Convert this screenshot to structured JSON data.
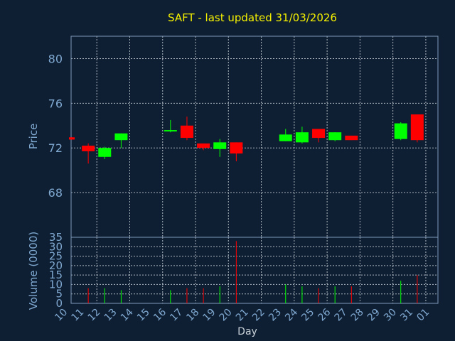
{
  "chart_data": {
    "type": "candlestick",
    "title": "SAFT - last updated 31/03/2026",
    "xlabel": "Day",
    "price_ylabel": "Price",
    "volume_ylabel": "Volume (0000)",
    "x_ticks": [
      "10",
      "11",
      "12",
      "13",
      "14",
      "15",
      "16",
      "17",
      "18",
      "19",
      "20",
      "21",
      "22",
      "23",
      "24",
      "25",
      "26",
      "27",
      "28",
      "29",
      "30",
      "31",
      "01"
    ],
    "price_ticks": [
      68,
      72,
      76,
      80
    ],
    "price_ylim": [
      64.0,
      82.0
    ],
    "volume_ticks": [
      0,
      5,
      10,
      15,
      20,
      25,
      30,
      35
    ],
    "volume_ylim": [
      0,
      35
    ],
    "colors": {
      "up": "#00ff00",
      "down": "#ff0000",
      "background": "#0f1f33",
      "title": "#f4f000",
      "axis_text": "#7fa8d0"
    },
    "candles": [
      {
        "day": "10",
        "open": 72.95,
        "high": 72.95,
        "low": 72.75,
        "close": 72.75,
        "volume": 0
      },
      {
        "day": "11",
        "open": 72.2,
        "high": 72.4,
        "low": 70.6,
        "close": 71.7,
        "volume": 8
      },
      {
        "day": "12",
        "open": 71.2,
        "high": 72.1,
        "low": 71.0,
        "close": 72.0,
        "volume": 8
      },
      {
        "day": "13",
        "open": 72.7,
        "high": 73.3,
        "low": 72.0,
        "close": 73.3,
        "volume": 7
      },
      {
        "day": "16",
        "open": 73.5,
        "high": 74.5,
        "low": 73.4,
        "close": 73.6,
        "volume": 7
      },
      {
        "day": "17",
        "open": 74.0,
        "high": 74.8,
        "low": 72.7,
        "close": 72.9,
        "volume": 8
      },
      {
        "day": "18",
        "open": 72.4,
        "high": 72.4,
        "low": 71.8,
        "close": 72.0,
        "volume": 8
      },
      {
        "day": "19",
        "open": 71.9,
        "high": 72.8,
        "low": 71.2,
        "close": 72.5,
        "volume": 9
      },
      {
        "day": "20",
        "open": 72.5,
        "high": 72.5,
        "low": 70.8,
        "close": 71.5,
        "volume": 33
      },
      {
        "day": "23",
        "open": 72.6,
        "high": 73.7,
        "low": 72.6,
        "close": 73.2,
        "volume": 10
      },
      {
        "day": "24",
        "open": 72.5,
        "high": 73.9,
        "low": 72.4,
        "close": 73.4,
        "volume": 9
      },
      {
        "day": "25",
        "open": 73.7,
        "high": 73.7,
        "low": 72.5,
        "close": 72.9,
        "volume": 8
      },
      {
        "day": "26",
        "open": 72.7,
        "high": 73.4,
        "low": 72.6,
        "close": 73.4,
        "volume": 9
      },
      {
        "day": "27",
        "open": 73.1,
        "high": 73.1,
        "low": 72.7,
        "close": 72.7,
        "volume": 9
      },
      {
        "day": "30",
        "open": 72.8,
        "high": 74.3,
        "low": 72.7,
        "close": 74.2,
        "volume": 12
      },
      {
        "day": "31",
        "open": 75.0,
        "high": 75.0,
        "low": 72.5,
        "close": 72.7,
        "volume": 15
      }
    ]
  }
}
